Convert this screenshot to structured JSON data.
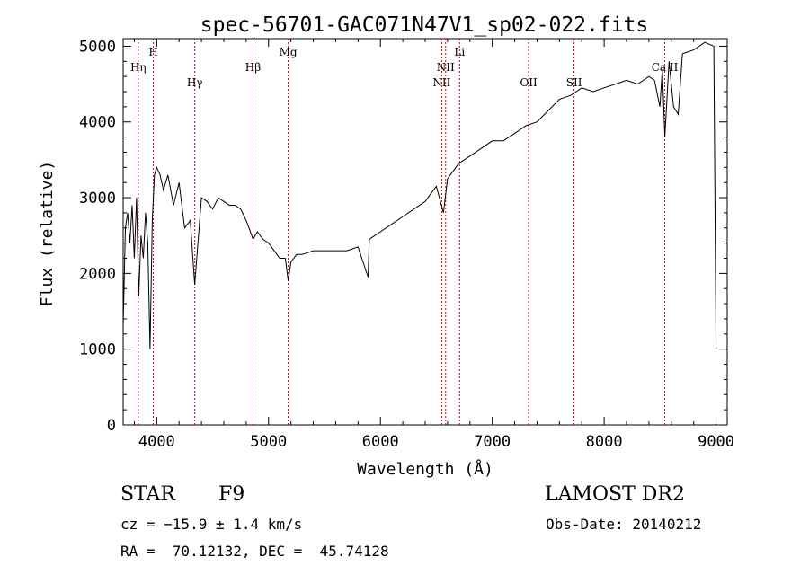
{
  "chart_data": {
    "type": "line",
    "title": "spec-56701-GAC071N47V1_sp02-022.fits",
    "xlabel": "Wavelength (Å)",
    "ylabel": "Flux (relative)",
    "xlim": [
      3700,
      9100
    ],
    "ylim": [
      0,
      5100
    ],
    "xticks": [
      4000,
      5000,
      6000,
      7000,
      8000,
      9000
    ],
    "yticks": [
      0,
      1000,
      2000,
      3000,
      4000,
      5000
    ],
    "line_color": "#000000",
    "marker_color": "#cc0000",
    "lines": [
      {
        "label": "Hη",
        "x": 3835,
        "tier": 2
      },
      {
        "label": "H",
        "x": 3970,
        "tier": 1
      },
      {
        "label": "Hγ",
        "x": 4340,
        "tier": 3
      },
      {
        "label": "Hβ",
        "x": 4861,
        "tier": 2
      },
      {
        "label": "Mg",
        "x": 5175,
        "tier": 1
      },
      {
        "label": "NII",
        "x": 6548,
        "tier": 3
      },
      {
        "label": "NII",
        "x": 6583,
        "tier": 2
      },
      {
        "label": "Li",
        "x": 6708,
        "tier": 1
      },
      {
        "label": "OII",
        "x": 7325,
        "tier": 3
      },
      {
        "label": "SII",
        "x": 7731,
        "tier": 3
      },
      {
        "label": "Ca II",
        "x": 8542,
        "tier": 2
      }
    ],
    "series": [
      {
        "x": [
          3700,
          3720,
          3740,
          3760,
          3780,
          3800,
          3820,
          3840,
          3860,
          3880,
          3900,
          3920,
          3940,
          3960,
          3980,
          4000,
          4030,
          4060,
          4100,
          4150,
          4200,
          4250,
          4300,
          4340,
          4400,
          4450,
          4500,
          4550,
          4600,
          4650,
          4700,
          4750,
          4800,
          4850,
          4861,
          4900,
          4950,
          5000,
          5050,
          5100,
          5150,
          5175,
          5200,
          5250,
          5300,
          5400,
          5500,
          5600,
          5700,
          5800,
          5890,
          5900,
          6000,
          6100,
          6200,
          6300,
          6400,
          6500,
          6563,
          6600,
          6700,
          6800,
          6900,
          7000,
          7100,
          7200,
          7300,
          7400,
          7500,
          7600,
          7700,
          7800,
          7900,
          8000,
          8100,
          8200,
          8300,
          8400,
          8450,
          8498,
          8520,
          8542,
          8580,
          8620,
          8662,
          8700,
          8800,
          8900,
          8980,
          9000
        ],
        "y": [
          1300,
          2600,
          2800,
          2400,
          2900,
          2200,
          3000,
          1700,
          2500,
          2200,
          2800,
          2400,
          1000,
          2700,
          3300,
          3400,
          3300,
          3100,
          3300,
          2900,
          3200,
          2600,
          2700,
          1850,
          3000,
          2950,
          2850,
          3000,
          2950,
          2900,
          2900,
          2850,
          2700,
          2500,
          2450,
          2550,
          2450,
          2400,
          2300,
          2200,
          2200,
          1900,
          2150,
          2250,
          2250,
          2300,
          2300,
          2300,
          2300,
          2350,
          1950,
          2450,
          2550,
          2650,
          2750,
          2850,
          2950,
          3150,
          2800,
          3250,
          3450,
          3550,
          3650,
          3750,
          3750,
          3850,
          3950,
          4000,
          4150,
          4300,
          4350,
          4450,
          4400,
          4450,
          4500,
          4550,
          4500,
          4600,
          4550,
          4200,
          4700,
          3800,
          4800,
          4200,
          4100,
          4900,
          4950,
          5050,
          5000,
          1000
        ]
      }
    ]
  },
  "footer": {
    "object_class": "STAR",
    "subclass": "F9",
    "survey": "LAMOST DR2",
    "cz": "cz = −15.9 ± 1.4 km/s",
    "obs_date": "Obs-Date: 20140212",
    "coords": "RA =  70.12132, DEC =  45.74128"
  }
}
